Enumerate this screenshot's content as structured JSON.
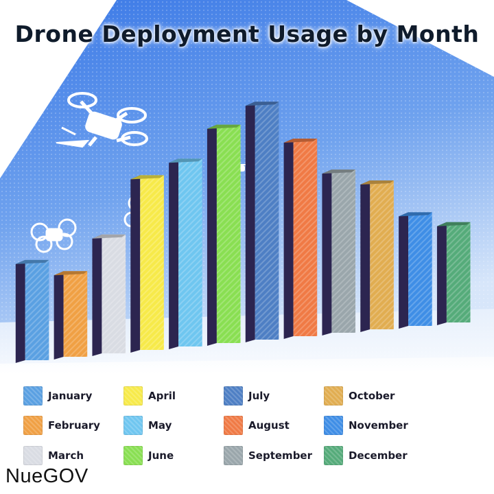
{
  "brand": "NueGOV",
  "colors": {
    "sky_top": "#3f7de8",
    "sky_bottom": "#c9ddf7",
    "bar_edge": "#2c2550"
  },
  "chart_data": {
    "type": "bar",
    "title": "Drone Deployment Usage by Month",
    "xlabel": "",
    "ylabel": "",
    "ylim": [
      0,
      100
    ],
    "grid": false,
    "legend_position": "bottom",
    "categories": [
      "January",
      "February",
      "March",
      "April",
      "May",
      "June",
      "July",
      "August",
      "September",
      "October",
      "November",
      "December"
    ],
    "values": [
      37,
      32,
      45,
      67,
      73,
      86,
      95,
      80,
      67,
      62,
      48,
      43
    ],
    "colors": [
      "#5aa0e2",
      "#f0a044",
      "#d9dce3",
      "#f7ea4a",
      "#6fc6f0",
      "#89df52",
      "#4e7fc4",
      "#f07a45",
      "#9aa6ab",
      "#e1ad51",
      "#3f8ee6",
      "#55ab7a"
    ]
  }
}
